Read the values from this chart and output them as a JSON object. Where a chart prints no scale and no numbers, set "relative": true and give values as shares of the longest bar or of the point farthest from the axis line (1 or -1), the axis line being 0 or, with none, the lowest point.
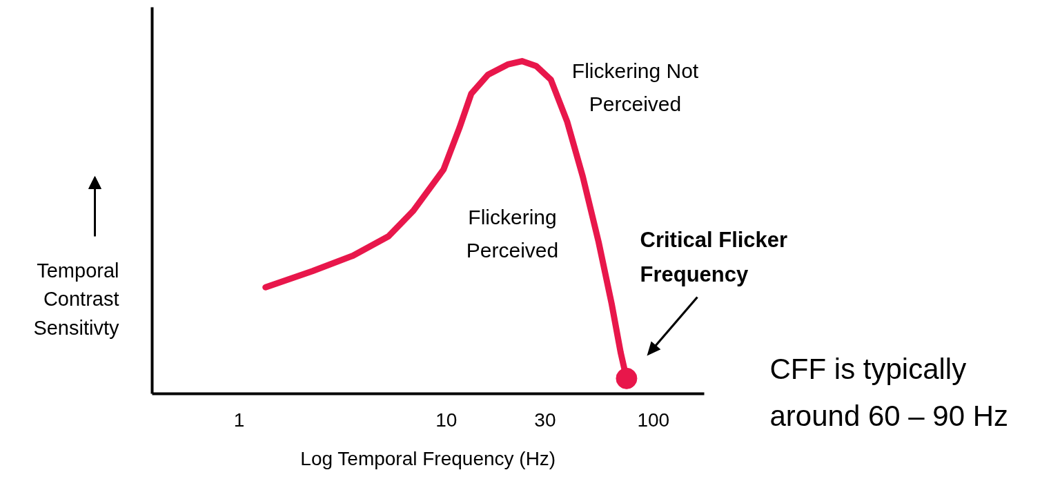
{
  "chart_data": {
    "type": "line",
    "relative": true,
    "log": "x",
    "xlabel": "Log Temporal Frequency (Hz)",
    "ylabel": "Temporal\nContrast\nSensitivty",
    "xlim": [
      0.38,
      176
    ],
    "xticks": [
      1,
      10,
      30,
      100
    ],
    "grid": false,
    "line_style": "solid",
    "series": [
      {
        "color": "#e8174b",
        "marker": "none",
        "x": [
          1.34,
          2.26,
          3.54,
          5.25,
          6.93,
          9.7,
          11.57,
          13.2,
          15.9,
          19.8,
          23.2,
          27.2,
          32.0,
          38.3,
          45.6,
          54.4,
          62.9,
          69.5,
          74.2
        ],
        "values": [
          0.32,
          0.369,
          0.415,
          0.473,
          0.55,
          0.674,
          0.799,
          0.902,
          0.959,
          0.99,
          1,
          0.985,
          0.944,
          0.819,
          0.653,
          0.456,
          0.27,
          0.124,
          0.046
        ]
      },
      {
        "type": "scatter",
        "color": "#e8174b",
        "marker": "circle",
        "x": [
          74.2
        ],
        "values": [
          0.046
        ]
      }
    ],
    "annotations": [
      "Flickering\nPerceived",
      "Flickering Not\nPerceived",
      "Critical Flicker\nFrequency",
      "CFF is typically\naround 60 – 90 Hz"
    ]
  }
}
